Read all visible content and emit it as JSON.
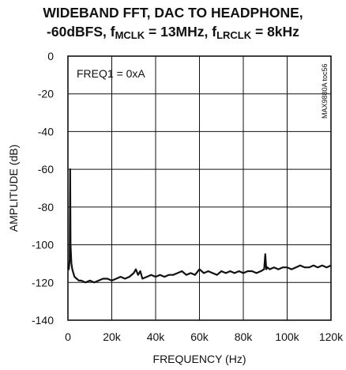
{
  "chart_data": {
    "type": "line",
    "title_line1": "WIDEBAND FFT, DAC TO HEADPHONE,",
    "title_line2_prefix": "-60dBFS, f",
    "title_mclk_sub": "MCLK",
    "title_mclk_value": " = 13MHz, f",
    "title_lrclk_sub": "LRCLK",
    "title_lrclk_value": " = 8kHz",
    "xlabel": "FREQUENCY (Hz)",
    "ylabel": "AMPLITUDE (dB)",
    "annotation": "FREQ1 = 0xA",
    "figure_id": "MAX9880A toc56",
    "xlim": [
      0,
      120000
    ],
    "ylim": [
      -140,
      0
    ],
    "x_ticks": [
      0,
      20000,
      40000,
      60000,
      80000,
      100000,
      120000
    ],
    "x_tick_labels": [
      "0",
      "20k",
      "40k",
      "60k",
      "80k",
      "100k",
      "120k"
    ],
    "y_ticks": [
      0,
      -20,
      -40,
      -60,
      -80,
      -100,
      -120,
      -140
    ],
    "y_tick_labels": [
      "0",
      "-20",
      "-40",
      "-60",
      "-80",
      "-100",
      "-120",
      "-140"
    ],
    "grid": true,
    "series": [
      {
        "x": [
          0,
          400,
          800,
          1000,
          1200,
          1600,
          2000,
          2500,
          3000,
          4000,
          5000,
          6000,
          8000,
          10000,
          12000,
          14000,
          16000,
          18000,
          20000,
          22000,
          24000,
          26000,
          28000,
          30000,
          31000,
          32000,
          33000,
          34000,
          36000,
          38000,
          40000,
          42000,
          44000,
          46000,
          48000,
          50000,
          52000,
          54000,
          56000,
          58000,
          60000,
          62000,
          64000,
          66000,
          68000,
          70000,
          72000,
          74000,
          76000,
          78000,
          80000,
          82000,
          84000,
          86000,
          88000,
          89500,
          90000,
          90500,
          91000,
          92000,
          94000,
          96000,
          98000,
          100000,
          102000,
          104000,
          106000,
          108000,
          110000,
          112000,
          114000,
          116000,
          118000,
          120000
        ],
        "y": [
          -112,
          -113,
          -108,
          -60,
          -100,
          -110,
          -113,
          -115,
          -117,
          -118,
          -119,
          -119,
          -120,
          -119,
          -120,
          -119,
          -118,
          -118,
          -119,
          -118,
          -117,
          -118,
          -117,
          -115,
          -113,
          -116,
          -114,
          -118,
          -117,
          -116,
          -117,
          -116,
          -117,
          -116,
          -116,
          -115,
          -114,
          -116,
          -115,
          -116,
          -113,
          -115,
          -114,
          -115,
          -116,
          -114,
          -115,
          -114,
          -115,
          -114,
          -115,
          -114,
          -114,
          -115,
          -114,
          -113,
          -105,
          -113,
          -112,
          -113,
          -112,
          -113,
          -112,
          -112,
          -113,
          -112,
          -111,
          -112,
          -112,
          -111,
          -112,
          -111,
          -112,
          -111
        ]
      }
    ]
  }
}
